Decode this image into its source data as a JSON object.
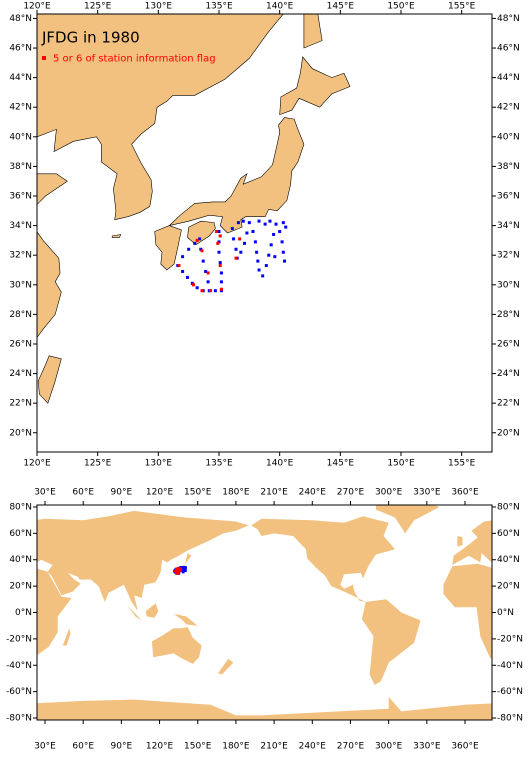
{
  "title": "JFDG in 1980",
  "maps": [
    {
      "xlim": [
        120,
        157.5
      ],
      "ylim": [
        18.7,
        48.3
      ],
      "xticks": [
        {
          "value": 120,
          "label": "120°E"
        },
        {
          "value": 125,
          "label": "125°E"
        },
        {
          "value": 130,
          "label": "130°E"
        },
        {
          "value": 135,
          "label": "135°E"
        },
        {
          "value": 140,
          "label": "140°E"
        },
        {
          "value": 145,
          "label": "145°E"
        },
        {
          "value": 150,
          "label": "150°E"
        },
        {
          "value": 155,
          "label": "155°E"
        }
      ],
      "yticks": [
        {
          "value": 20,
          "label": "20°N"
        },
        {
          "value": 22,
          "label": "22°N"
        },
        {
          "value": 24,
          "label": "24°N"
        },
        {
          "value": 26,
          "label": "26°N"
        },
        {
          "value": 28,
          "label": "28°N"
        },
        {
          "value": 30,
          "label": "30°N"
        },
        {
          "value": 32,
          "label": "32°N"
        },
        {
          "value": 34,
          "label": "34°N"
        },
        {
          "value": 36,
          "label": "36°N"
        },
        {
          "value": 38,
          "label": "38°N"
        },
        {
          "value": 40,
          "label": "40°N"
        },
        {
          "value": 42,
          "label": "42°N"
        },
        {
          "value": 44,
          "label": "44°N"
        },
        {
          "value": 46,
          "label": "46°N"
        },
        {
          "value": 48,
          "label": "48°N"
        }
      ]
    },
    {
      "xlim": [
        23.7,
        381.2
      ],
      "ylim": [
        -81.5,
        81.5
      ],
      "xticks": [
        {
          "value": 30,
          "label": "30°E"
        },
        {
          "value": 60,
          "label": "60°E"
        },
        {
          "value": 90,
          "label": "90°E"
        },
        {
          "value": 120,
          "label": "120°E"
        },
        {
          "value": 150,
          "label": "150°E"
        },
        {
          "value": 180,
          "label": "180°E"
        },
        {
          "value": 210,
          "label": "210°E"
        },
        {
          "value": 240,
          "label": "240°E"
        },
        {
          "value": 270,
          "label": "270°E"
        },
        {
          "value": 300,
          "label": "300°E"
        },
        {
          "value": 330,
          "label": "330°E"
        },
        {
          "value": 360,
          "label": "360°E"
        }
      ],
      "yticks": [
        {
          "value": -80,
          "label": "-80°N"
        },
        {
          "value": -60,
          "label": "-60°N"
        },
        {
          "value": -40,
          "label": "-40°N"
        },
        {
          "value": -20,
          "label": "-20°N"
        },
        {
          "value": 0,
          "label": "0°N"
        },
        {
          "value": 20,
          "label": "20°N"
        },
        {
          "value": 40,
          "label": "40°N"
        },
        {
          "value": 60,
          "label": "60°N"
        },
        {
          "value": 80,
          "label": "80°N"
        }
      ]
    }
  ],
  "stations": [
    {
      "color": "#0000ff",
      "lon": [
        131.6,
        132.0,
        132.4,
        132.8,
        133.2,
        133.7,
        134.2,
        134.7,
        135.2,
        135.2,
        135.2,
        135.1,
        135.0,
        135.0,
        135.0,
        132.0,
        132.5,
        133.0,
        133.4,
        133.5,
        133.7,
        133.9,
        134.1,
        136.1,
        136.2,
        136.4,
        136.5,
        136.8,
        137.1,
        137.3,
        137.5,
        137.8,
        138.0,
        138.1,
        138.2,
        138.3,
        138.6,
        138.9,
        139.1,
        139.3,
        139.5,
        139.7,
        140.0,
        140.2,
        140.3,
        140.4,
        139.6,
        136.6,
        137.0,
        138.3,
        138.8,
        139.2,
        140.3,
        140.5
      ],
      "lat": [
        31.3,
        30.9,
        30.5,
        30.1,
        29.8,
        29.6,
        29.6,
        29.6,
        29.6,
        30.2,
        30.8,
        31.5,
        32.2,
        32.9,
        33.6,
        31.9,
        32.4,
        32.8,
        33.1,
        32.4,
        31.6,
        30.9,
        30.2,
        33.8,
        33.1,
        32.4,
        31.8,
        32.2,
        32.8,
        33.5,
        34.2,
        33.6,
        32.9,
        32.2,
        31.6,
        31.0,
        30.6,
        31.3,
        32.0,
        32.7,
        33.4,
        34.1,
        33.6,
        32.9,
        32.2,
        31.6,
        31.9,
        34.2,
        34.3,
        34.3,
        34.1,
        34.3,
        34.2,
        33.9
      ]
    },
    {
      "name": "5 or 6 of station information flag",
      "color": "#ff0000",
      "lon": [
        131.7,
        132.9,
        133.6,
        134.3,
        135.2,
        135.1,
        134.9,
        134.8,
        133.2,
        133.6,
        134.1,
        136.4,
        136.7,
        135.1
      ],
      "lat": [
        31.3,
        30.0,
        29.6,
        29.6,
        29.7,
        31.3,
        32.8,
        33.6,
        33.0,
        32.3,
        30.8,
        31.8,
        33.1,
        33.3
      ]
    }
  ]
}
